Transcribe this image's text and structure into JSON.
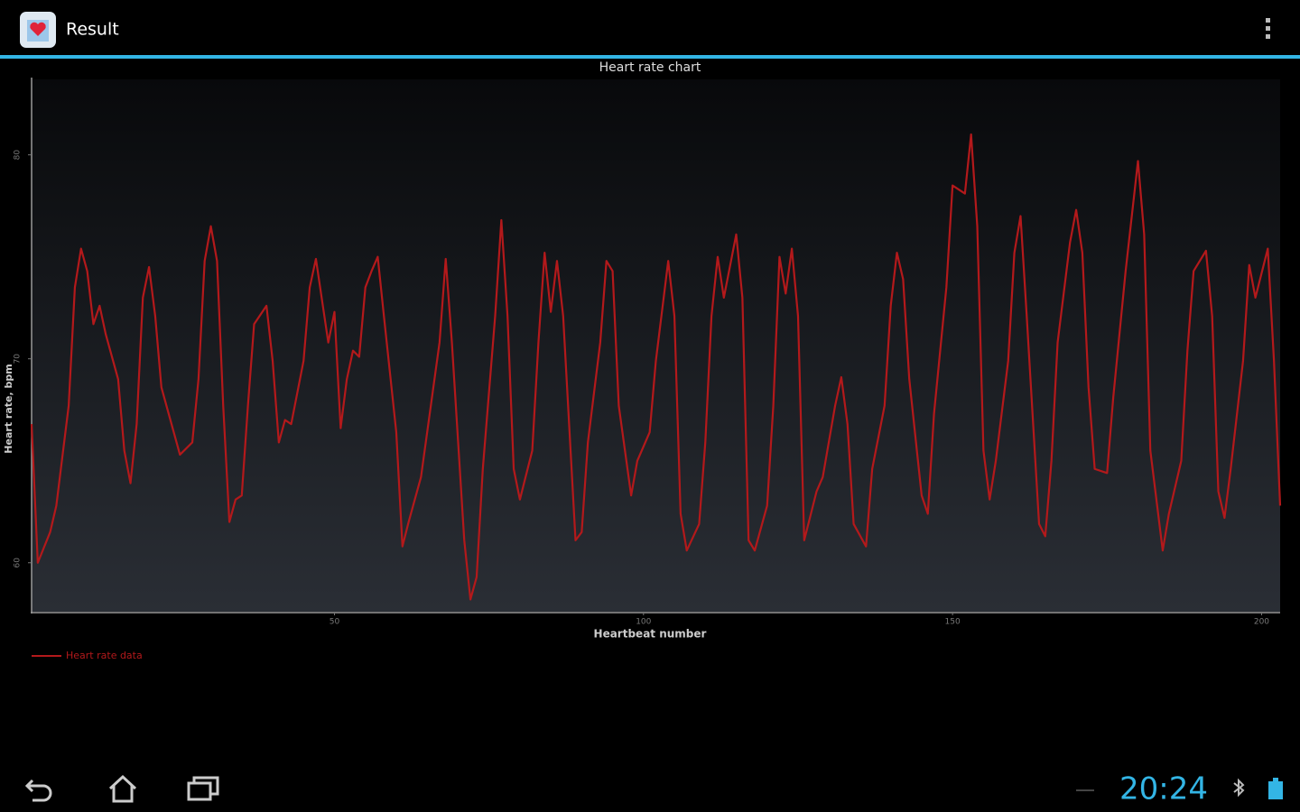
{
  "app_bar": {
    "title": "Result"
  },
  "chart_data": {
    "type": "line",
    "title": "Heart rate chart",
    "x_label": "Heartbeat number",
    "y_label": "Heart rate, bpm",
    "xlim": [
      1,
      203
    ],
    "xticks": [
      50,
      100,
      150,
      200
    ],
    "ylim": [
      57.6,
      83.7
    ],
    "yticks": [
      60,
      70,
      80
    ],
    "x": [
      1,
      2,
      4,
      5,
      7,
      8,
      9,
      10,
      11,
      12,
      13,
      15,
      16,
      17,
      18,
      19,
      20,
      21,
      22,
      24,
      25,
      27,
      28,
      29,
      30,
      31,
      32,
      33,
      34,
      35,
      36,
      37,
      39,
      40,
      41,
      42,
      43,
      45,
      46,
      47,
      49,
      50,
      51,
      52,
      53,
      54,
      55,
      56,
      57,
      58,
      60,
      61,
      62,
      64,
      65,
      67,
      68,
      69,
      71,
      72,
      73,
      74,
      76,
      77,
      78,
      79,
      80,
      82,
      83,
      84,
      85,
      86,
      87,
      89,
      90,
      91,
      93,
      94,
      95,
      96,
      98,
      99,
      101,
      102,
      104,
      105,
      106,
      107,
      109,
      110,
      111,
      112,
      113,
      115,
      116,
      117,
      118,
      120,
      121,
      122,
      123,
      124,
      125,
      126,
      128,
      129,
      131,
      132,
      133,
      134,
      136,
      137,
      139,
      140,
      141,
      142,
      143,
      145,
      146,
      147,
      149,
      150,
      152,
      153,
      154,
      155,
      156,
      157,
      159,
      160,
      161,
      162,
      164,
      165,
      166,
      167,
      169,
      170,
      171,
      172,
      173,
      175,
      176,
      178,
      179,
      180,
      181,
      182,
      184,
      185,
      187,
      188,
      189,
      191,
      192,
      193,
      194,
      195,
      197,
      198,
      199,
      201,
      202,
      203
    ],
    "series": [
      {
        "name": "Heart rate data",
        "color": "#b3191b",
        "values": [
          66.8,
          60.0,
          61.5,
          62.8,
          67.7,
          73.5,
          75.4,
          74.3,
          71.7,
          72.6,
          71.2,
          69.0,
          65.5,
          63.9,
          66.8,
          73.0,
          74.5,
          72.1,
          68.6,
          66.4,
          65.3,
          65.9,
          69.0,
          74.8,
          76.5,
          74.8,
          67.7,
          62.0,
          63.1,
          63.3,
          67.7,
          71.7,
          72.6,
          69.9,
          65.9,
          67.0,
          66.8,
          69.9,
          73.5,
          74.9,
          70.8,
          72.3,
          66.6,
          69.0,
          70.4,
          70.1,
          73.5,
          74.3,
          75.0,
          72.1,
          66.4,
          60.8,
          62.0,
          64.2,
          66.4,
          70.8,
          74.9,
          70.8,
          61.1,
          58.2,
          59.3,
          64.6,
          72.1,
          76.8,
          72.1,
          64.6,
          63.1,
          65.5,
          70.8,
          75.2,
          72.3,
          74.8,
          72.1,
          61.1,
          61.5,
          65.9,
          70.8,
          74.8,
          74.3,
          67.7,
          63.3,
          65.0,
          66.4,
          69.9,
          74.8,
          72.1,
          62.4,
          60.6,
          61.9,
          65.9,
          72.1,
          75.0,
          73.0,
          76.1,
          73.0,
          61.1,
          60.6,
          62.8,
          67.7,
          75.0,
          73.2,
          75.4,
          72.1,
          61.1,
          63.5,
          64.2,
          67.7,
          69.1,
          66.8,
          61.9,
          60.8,
          64.6,
          67.7,
          72.6,
          75.2,
          73.9,
          69.0,
          63.3,
          62.4,
          67.3,
          73.5,
          78.5,
          78.1,
          81.0,
          76.5,
          65.5,
          63.1,
          65.0,
          69.9,
          75.2,
          77.0,
          72.1,
          61.9,
          61.3,
          65.0,
          70.8,
          75.7,
          77.3,
          75.2,
          68.6,
          64.6,
          64.4,
          68.1,
          74.3,
          77.0,
          79.7,
          76.1,
          65.5,
          60.6,
          62.4,
          65.0,
          70.4,
          74.3,
          75.3,
          72.1,
          63.5,
          62.2,
          64.6,
          69.9,
          74.6,
          73.0,
          75.4,
          69.9,
          62.8
        ]
      }
    ]
  },
  "status_bar": {
    "time": "20:24"
  }
}
